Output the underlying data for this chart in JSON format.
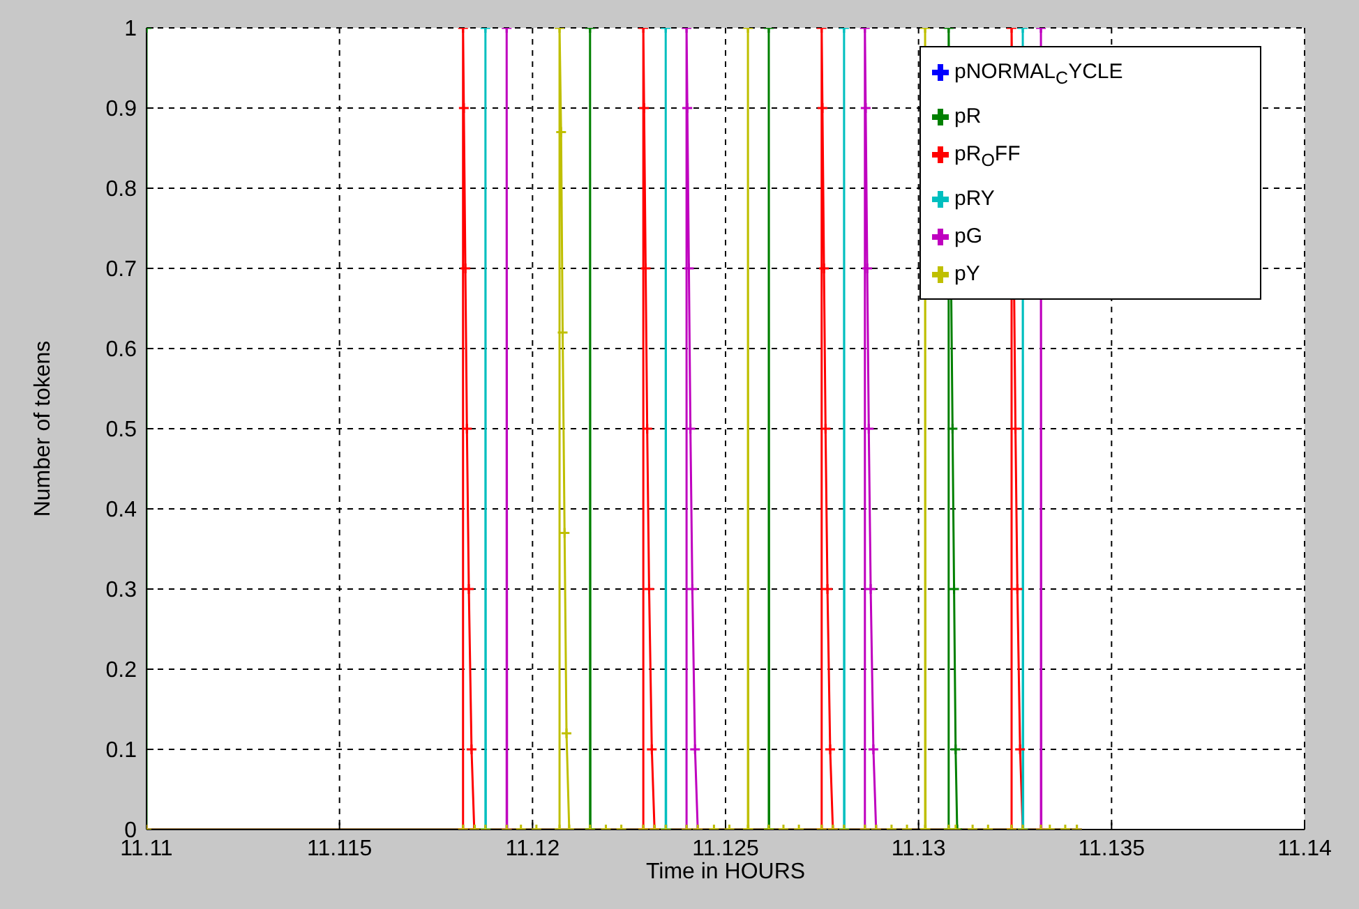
{
  "chart_data": {
    "type": "line",
    "xlabel": "Time in HOURS",
    "ylabel": "Number of tokens",
    "xlim": [
      11.11,
      11.14
    ],
    "xticks": [
      11.11,
      11.115,
      11.12,
      11.125,
      11.13,
      11.135,
      11.14
    ],
    "ylim": [
      0,
      1
    ],
    "yticks": [
      0,
      0.1,
      0.2,
      0.3,
      0.4,
      0.5,
      0.6,
      0.7,
      0.8,
      0.9,
      1
    ],
    "grid": true,
    "legend": "top right",
    "marker": "cross",
    "line_style": "solid",
    "series": [
      {
        "name": "pNORMAL$_{C}$YCLE",
        "color": "#0000ff"
      },
      {
        "name": "pR",
        "color": "#008000",
        "x": [
          11.11,
          11.11,
          11.1185,
          11.12149,
          11.12149,
          11.1215,
          11.12612,
          11.12612,
          11.12613,
          11.13078,
          11.13078,
          11.1308,
          11.13084,
          11.13088,
          11.13092,
          11.13096,
          11.131,
          11.1341
        ],
        "values": [
          1,
          0,
          0,
          0,
          1,
          0,
          0,
          1,
          0,
          0,
          1,
          null,
          null,
          0.5,
          0.3,
          0.1,
          0,
          0
        ]
      },
      {
        "name": "pR$_{O}$FF",
        "color": "#ff0000",
        "x": [
          11.11,
          11.1182,
          11.1182,
          11.11822,
          11.11826,
          11.1183,
          11.11835,
          11.11842,
          11.11849,
          11.12287,
          11.12287,
          11.12289,
          11.12293,
          11.12297,
          11.12302,
          11.12309,
          11.12316,
          11.12749,
          11.12749,
          11.12751,
          11.12755,
          11.12759,
          11.12764,
          11.12771,
          11.12778,
          11.13241,
          11.13241,
          11.13243,
          11.13247,
          11.13251,
          11.13256,
          11.13263,
          11.1327,
          11.1341
        ],
        "values": [
          0,
          0,
          1,
          0.9,
          0.7,
          0.5,
          0.3,
          0.1,
          0,
          0,
          1,
          0.9,
          0.7,
          0.5,
          0.3,
          0.1,
          0,
          0,
          1,
          0.9,
          0.7,
          0.5,
          0.3,
          0.1,
          0,
          0,
          1,
          null,
          null,
          0.5,
          0.3,
          0.1,
          0,
          0
        ]
      },
      {
        "name": "pRY",
        "color": "#00bfbf",
        "x": [
          11.11,
          11.11878,
          11.11878,
          11.11879,
          11.12345,
          11.12345,
          11.12346,
          11.12807,
          11.12807,
          11.12808,
          11.1327,
          11.1327,
          11.13271,
          11.1341
        ],
        "values": [
          0,
          0,
          1,
          0,
          0,
          1,
          0,
          0,
          1,
          0,
          0,
          1,
          0,
          0
        ]
      },
      {
        "name": "pG",
        "color": "#bf00bf",
        "x": [
          11.11,
          11.11933,
          11.11933,
          11.11934,
          11.12399,
          11.12399,
          11.12401,
          11.12405,
          11.12409,
          11.12414,
          11.12421,
          11.12428,
          11.12861,
          11.12861,
          11.12863,
          11.12867,
          11.12871,
          11.12876,
          11.12883,
          11.1289,
          11.13317,
          11.13317,
          11.13318,
          11.1341
        ],
        "values": [
          0,
          0,
          1,
          0,
          0,
          1,
          0.9,
          0.7,
          0.5,
          0.3,
          0.1,
          0,
          0,
          1,
          0.9,
          0.7,
          0.5,
          0.3,
          0.1,
          0,
          0,
          1,
          0,
          0
        ]
      },
      {
        "name": "pY",
        "color": "#bfbf00",
        "x": [
          11.11,
          11.1182,
          11.1185,
          11.11878,
          11.11933,
          11.1197,
          11.1201,
          11.1207,
          11.1207,
          11.12074,
          11.12078,
          11.12083,
          11.12088,
          11.12095,
          11.12149,
          11.1219,
          11.1223,
          11.12287,
          11.12316,
          11.12345,
          11.12399,
          11.12428,
          11.1247,
          11.1251,
          11.12558,
          11.12558,
          11.12559,
          11.12612,
          11.1265,
          11.1269,
          11.12749,
          11.12778,
          11.12807,
          11.12861,
          11.1289,
          11.1293,
          11.1297,
          11.13017,
          11.13017,
          11.13018,
          11.13078,
          11.13096,
          11.1314,
          11.1318,
          11.13241,
          11.1327,
          11.13317,
          11.1334,
          11.1338,
          11.1341
        ],
        "values": [
          0,
          0,
          0,
          0,
          0,
          0,
          0,
          0,
          1,
          0.87,
          0.62,
          0.37,
          0.12,
          0,
          0,
          0,
          0,
          0,
          0,
          0,
          0,
          0,
          0,
          0,
          0,
          1,
          0,
          0,
          0,
          0,
          0,
          0,
          0,
          0,
          0,
          0,
          0,
          0,
          1,
          0,
          0,
          0,
          0,
          0,
          0,
          0,
          0,
          0,
          0,
          0
        ]
      }
    ]
  }
}
